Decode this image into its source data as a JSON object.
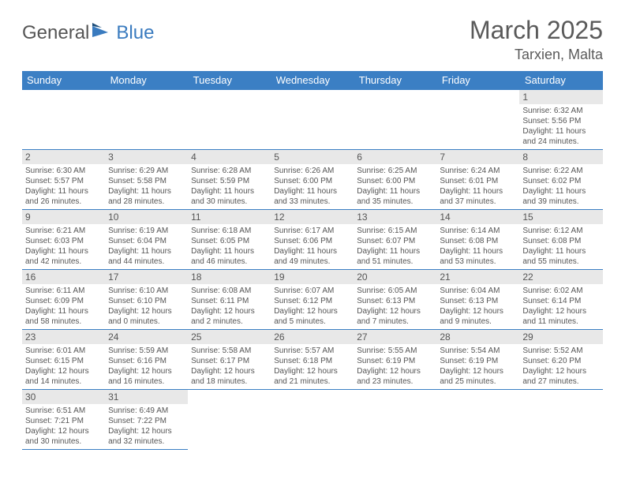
{
  "logo": {
    "text1": "General",
    "text2": "Blue"
  },
  "title": "March 2025",
  "location": "Tarxien, Malta",
  "colors": {
    "header_bg": "#3b7fc4",
    "header_text": "#ffffff",
    "cell_border": "#3b7fc4",
    "daynum_bg": "#e8e8e8",
    "body_text": "#555555",
    "logo_blue": "#3a7bbf"
  },
  "weekdays": [
    "Sunday",
    "Monday",
    "Tuesday",
    "Wednesday",
    "Thursday",
    "Friday",
    "Saturday"
  ],
  "weeks": [
    [
      null,
      null,
      null,
      null,
      null,
      null,
      {
        "d": "1",
        "sr": "Sunrise: 6:32 AM",
        "ss": "Sunset: 5:56 PM",
        "dl": "Daylight: 11 hours and 24 minutes."
      }
    ],
    [
      {
        "d": "2",
        "sr": "Sunrise: 6:30 AM",
        "ss": "Sunset: 5:57 PM",
        "dl": "Daylight: 11 hours and 26 minutes."
      },
      {
        "d": "3",
        "sr": "Sunrise: 6:29 AM",
        "ss": "Sunset: 5:58 PM",
        "dl": "Daylight: 11 hours and 28 minutes."
      },
      {
        "d": "4",
        "sr": "Sunrise: 6:28 AM",
        "ss": "Sunset: 5:59 PM",
        "dl": "Daylight: 11 hours and 30 minutes."
      },
      {
        "d": "5",
        "sr": "Sunrise: 6:26 AM",
        "ss": "Sunset: 6:00 PM",
        "dl": "Daylight: 11 hours and 33 minutes."
      },
      {
        "d": "6",
        "sr": "Sunrise: 6:25 AM",
        "ss": "Sunset: 6:00 PM",
        "dl": "Daylight: 11 hours and 35 minutes."
      },
      {
        "d": "7",
        "sr": "Sunrise: 6:24 AM",
        "ss": "Sunset: 6:01 PM",
        "dl": "Daylight: 11 hours and 37 minutes."
      },
      {
        "d": "8",
        "sr": "Sunrise: 6:22 AM",
        "ss": "Sunset: 6:02 PM",
        "dl": "Daylight: 11 hours and 39 minutes."
      }
    ],
    [
      {
        "d": "9",
        "sr": "Sunrise: 6:21 AM",
        "ss": "Sunset: 6:03 PM",
        "dl": "Daylight: 11 hours and 42 minutes."
      },
      {
        "d": "10",
        "sr": "Sunrise: 6:19 AM",
        "ss": "Sunset: 6:04 PM",
        "dl": "Daylight: 11 hours and 44 minutes."
      },
      {
        "d": "11",
        "sr": "Sunrise: 6:18 AM",
        "ss": "Sunset: 6:05 PM",
        "dl": "Daylight: 11 hours and 46 minutes."
      },
      {
        "d": "12",
        "sr": "Sunrise: 6:17 AM",
        "ss": "Sunset: 6:06 PM",
        "dl": "Daylight: 11 hours and 49 minutes."
      },
      {
        "d": "13",
        "sr": "Sunrise: 6:15 AM",
        "ss": "Sunset: 6:07 PM",
        "dl": "Daylight: 11 hours and 51 minutes."
      },
      {
        "d": "14",
        "sr": "Sunrise: 6:14 AM",
        "ss": "Sunset: 6:08 PM",
        "dl": "Daylight: 11 hours and 53 minutes."
      },
      {
        "d": "15",
        "sr": "Sunrise: 6:12 AM",
        "ss": "Sunset: 6:08 PM",
        "dl": "Daylight: 11 hours and 55 minutes."
      }
    ],
    [
      {
        "d": "16",
        "sr": "Sunrise: 6:11 AM",
        "ss": "Sunset: 6:09 PM",
        "dl": "Daylight: 11 hours and 58 minutes."
      },
      {
        "d": "17",
        "sr": "Sunrise: 6:10 AM",
        "ss": "Sunset: 6:10 PM",
        "dl": "Daylight: 12 hours and 0 minutes."
      },
      {
        "d": "18",
        "sr": "Sunrise: 6:08 AM",
        "ss": "Sunset: 6:11 PM",
        "dl": "Daylight: 12 hours and 2 minutes."
      },
      {
        "d": "19",
        "sr": "Sunrise: 6:07 AM",
        "ss": "Sunset: 6:12 PM",
        "dl": "Daylight: 12 hours and 5 minutes."
      },
      {
        "d": "20",
        "sr": "Sunrise: 6:05 AM",
        "ss": "Sunset: 6:13 PM",
        "dl": "Daylight: 12 hours and 7 minutes."
      },
      {
        "d": "21",
        "sr": "Sunrise: 6:04 AM",
        "ss": "Sunset: 6:13 PM",
        "dl": "Daylight: 12 hours and 9 minutes."
      },
      {
        "d": "22",
        "sr": "Sunrise: 6:02 AM",
        "ss": "Sunset: 6:14 PM",
        "dl": "Daylight: 12 hours and 11 minutes."
      }
    ],
    [
      {
        "d": "23",
        "sr": "Sunrise: 6:01 AM",
        "ss": "Sunset: 6:15 PM",
        "dl": "Daylight: 12 hours and 14 minutes."
      },
      {
        "d": "24",
        "sr": "Sunrise: 5:59 AM",
        "ss": "Sunset: 6:16 PM",
        "dl": "Daylight: 12 hours and 16 minutes."
      },
      {
        "d": "25",
        "sr": "Sunrise: 5:58 AM",
        "ss": "Sunset: 6:17 PM",
        "dl": "Daylight: 12 hours and 18 minutes."
      },
      {
        "d": "26",
        "sr": "Sunrise: 5:57 AM",
        "ss": "Sunset: 6:18 PM",
        "dl": "Daylight: 12 hours and 21 minutes."
      },
      {
        "d": "27",
        "sr": "Sunrise: 5:55 AM",
        "ss": "Sunset: 6:19 PM",
        "dl": "Daylight: 12 hours and 23 minutes."
      },
      {
        "d": "28",
        "sr": "Sunrise: 5:54 AM",
        "ss": "Sunset: 6:19 PM",
        "dl": "Daylight: 12 hours and 25 minutes."
      },
      {
        "d": "29",
        "sr": "Sunrise: 5:52 AM",
        "ss": "Sunset: 6:20 PM",
        "dl": "Daylight: 12 hours and 27 minutes."
      }
    ],
    [
      {
        "d": "30",
        "sr": "Sunrise: 6:51 AM",
        "ss": "Sunset: 7:21 PM",
        "dl": "Daylight: 12 hours and 30 minutes."
      },
      {
        "d": "31",
        "sr": "Sunrise: 6:49 AM",
        "ss": "Sunset: 7:22 PM",
        "dl": "Daylight: 12 hours and 32 minutes."
      },
      null,
      null,
      null,
      null,
      null
    ]
  ]
}
